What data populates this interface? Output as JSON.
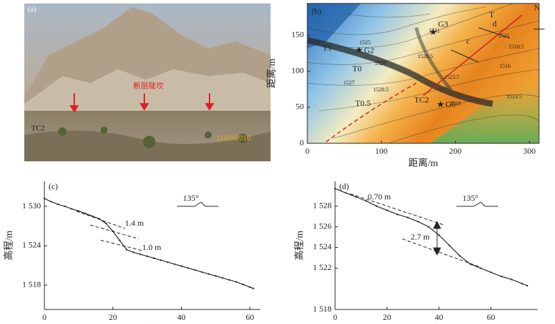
{
  "photo": {
    "panel": "(a)",
    "caption": "断层陡坎",
    "site": "TC2",
    "date": "11/29/2010"
  },
  "chart_data": [
    {
      "type": "map",
      "panel": "(b)",
      "xlabel": "距离/m",
      "ylabel": "距离/m",
      "xlim": [
        0,
        313
      ],
      "ylim": [
        0,
        194
      ],
      "xticks": [
        0,
        100,
        200,
        300
      ],
      "yticks": [
        0,
        50,
        100,
        150
      ],
      "points": [
        {
          "name": "G3",
          "x": 170,
          "y": 153
        },
        {
          "name": "G2",
          "x": 70,
          "y": 128
        },
        {
          "name": "G0",
          "x": 180,
          "y": 53
        }
      ],
      "labels": [
        "T",
        "T1",
        "T0",
        "T0.5",
        "TC2",
        "c",
        "d",
        "N",
        "1531",
        "1526.5",
        "1525",
        "1529",
        "1527",
        "1528.5",
        "1521",
        "1518.5",
        "1516",
        "1513.5",
        "1518",
        "1523.5"
      ]
    },
    {
      "type": "line",
      "panel": "(c)",
      "xlabel": "距离/m",
      "ylabel": "高程/m",
      "xlim": [
        0,
        63
      ],
      "ylim": [
        1514.3,
        1533.8
      ],
      "xticks": [
        0,
        20,
        40,
        60
      ],
      "yticks": [
        {
          "value": 1518,
          "label": "1 518"
        },
        {
          "value": 1524,
          "label": "1 524"
        },
        {
          "value": 1530,
          "label": "1 530"
        }
      ],
      "x": [
        0,
        2,
        4,
        6,
        8,
        10,
        12,
        14,
        16,
        18,
        20,
        22,
        24,
        26,
        28,
        30,
        32,
        34,
        36,
        38,
        40,
        42,
        44,
        46,
        48,
        50,
        52,
        54,
        56,
        58,
        60,
        61
      ],
      "values": [
        1531.2,
        1530.7,
        1530.3,
        1530,
        1529.6,
        1529.3,
        1528.9,
        1528.5,
        1528.1,
        1527.4,
        1526.2,
        1524.8,
        1523.4,
        1523,
        1522.7,
        1522.4,
        1522.1,
        1521.8,
        1521.5,
        1521.2,
        1520.9,
        1520.6,
        1520.3,
        1520,
        1519.7,
        1519.4,
        1519.1,
        1518.8,
        1518.5,
        1518.1,
        1517.7,
        1517.5
      ],
      "color": "#222",
      "annotations": [
        "1.4 m",
        "1.0 m"
      ],
      "azimuth": "135°"
    },
    {
      "type": "line",
      "panel": "(d)",
      "xlabel": "距离/m",
      "ylabel": "高程/m",
      "xlim": [
        0,
        78
      ],
      "ylim": [
        1518,
        1530.4
      ],
      "xticks": [
        0,
        20,
        40,
        60
      ],
      "yticks": [
        {
          "value": 1518,
          "label": "1 518"
        },
        {
          "value": 1522,
          "label": "1 522"
        },
        {
          "value": 1524,
          "label": "1 524"
        },
        {
          "value": 1526,
          "label": "1 526"
        },
        {
          "value": 1528,
          "label": "1 528"
        }
      ],
      "x": [
        0,
        4,
        8,
        12,
        16,
        20,
        24,
        28,
        32,
        36,
        40,
        44,
        48,
        52,
        56,
        60,
        64,
        68,
        72,
        74
      ],
      "values": [
        1529.7,
        1529.3,
        1528.9,
        1528.5,
        1528,
        1527.6,
        1527.2,
        1526.9,
        1526.5,
        1526,
        1525.2,
        1524.2,
        1523.2,
        1522.4,
        1522,
        1521.6,
        1521.2,
        1520.9,
        1520.5,
        1520.3
      ],
      "color": "#222",
      "annotations": [
        "0.70 m",
        "2.7 m"
      ],
      "azimuth": "135°"
    }
  ]
}
